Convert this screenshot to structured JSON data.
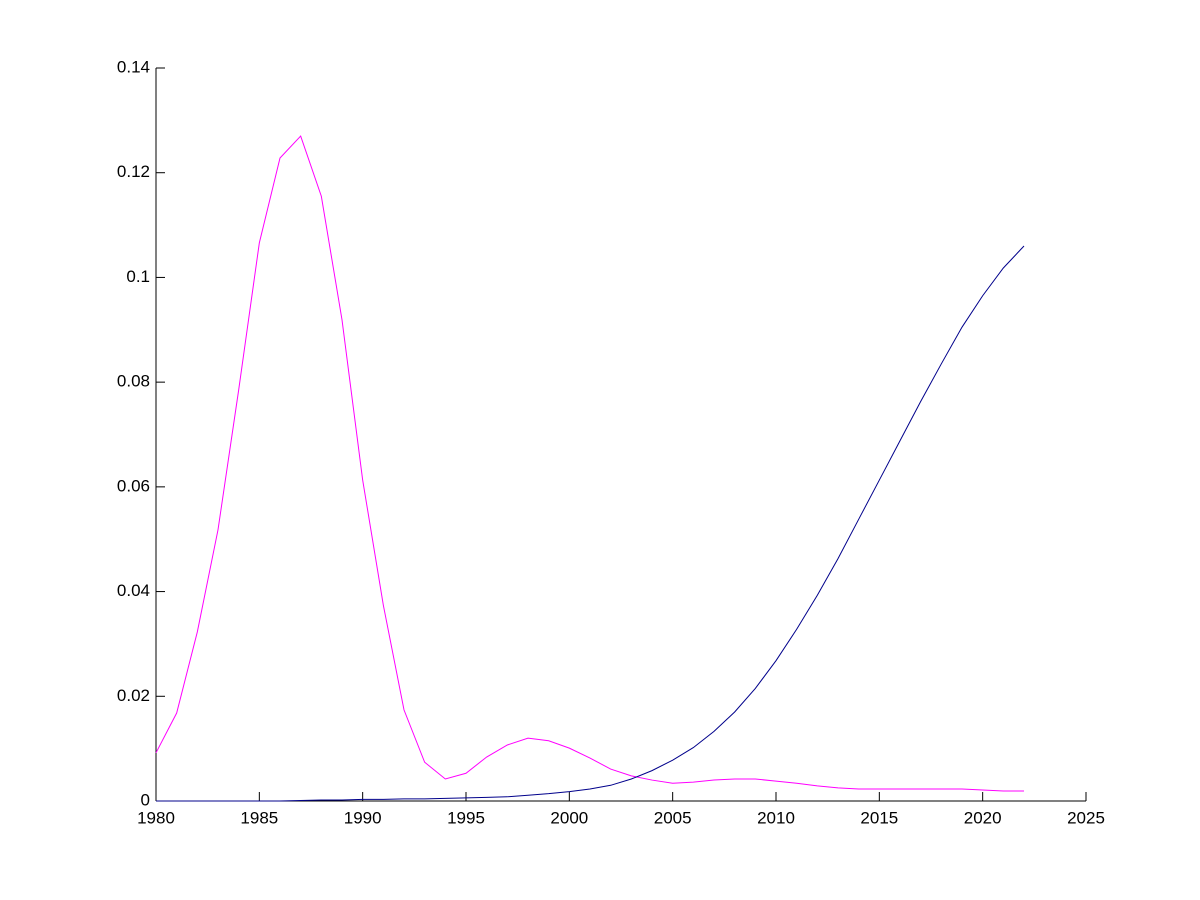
{
  "chart_data": {
    "type": "line",
    "x": [
      1980,
      1981,
      1982,
      1983,
      1984,
      1985,
      1986,
      1987,
      1988,
      1989,
      1990,
      1991,
      1992,
      1993,
      1994,
      1995,
      1996,
      1997,
      1998,
      1999,
      2000,
      2001,
      2002,
      2003,
      2004,
      2005,
      2006,
      2007,
      2008,
      2009,
      2010,
      2011,
      2012,
      2013,
      2014,
      2015,
      2016,
      2017,
      2018,
      2019,
      2020,
      2021,
      2022
    ],
    "series": [
      {
        "color": "#ff00ff",
        "values": [
          0.0092,
          0.0168,
          0.0323,
          0.0518,
          0.0785,
          0.1066,
          0.1228,
          0.127,
          0.1155,
          0.0919,
          0.0613,
          0.0374,
          0.0174,
          0.0074,
          0.0042,
          0.0053,
          0.0084,
          0.0107,
          0.012,
          0.0115,
          0.0101,
          0.0082,
          0.0061,
          0.0048,
          0.004,
          0.0034,
          0.0036,
          0.004,
          0.0042,
          0.0042,
          0.0038,
          0.0034,
          0.0029,
          0.0025,
          0.0023,
          0.0023,
          0.0023,
          0.0023,
          0.0023,
          0.0023,
          0.0021,
          0.0019,
          0.0019
        ]
      },
      {
        "color": "#00008b",
        "values": [
          0,
          0,
          0,
          0,
          0,
          0,
          0,
          0.0001,
          0.0002,
          0.0002,
          0.0003,
          0.0003,
          0.0004,
          0.0004,
          0.0005,
          0.0006,
          0.0007,
          0.0008,
          0.0011,
          0.0014,
          0.0018,
          0.0023,
          0.003,
          0.0042,
          0.0058,
          0.0078,
          0.0102,
          0.0133,
          0.017,
          0.0215,
          0.0268,
          0.0328,
          0.0393,
          0.0463,
          0.0538,
          0.0613,
          0.0688,
          0.0763,
          0.0835,
          0.0905,
          0.0965,
          0.1018,
          0.106
        ]
      }
    ],
    "xlim": [
      1980,
      2025
    ],
    "xticks": [
      1980,
      1985,
      1990,
      1995,
      2000,
      2005,
      2010,
      2015,
      2020,
      2025
    ],
    "ylim": [
      0,
      0.14
    ],
    "yticks": [
      0,
      0.02,
      0.04,
      0.06,
      0.08,
      0.1,
      0.12,
      0.14
    ]
  }
}
